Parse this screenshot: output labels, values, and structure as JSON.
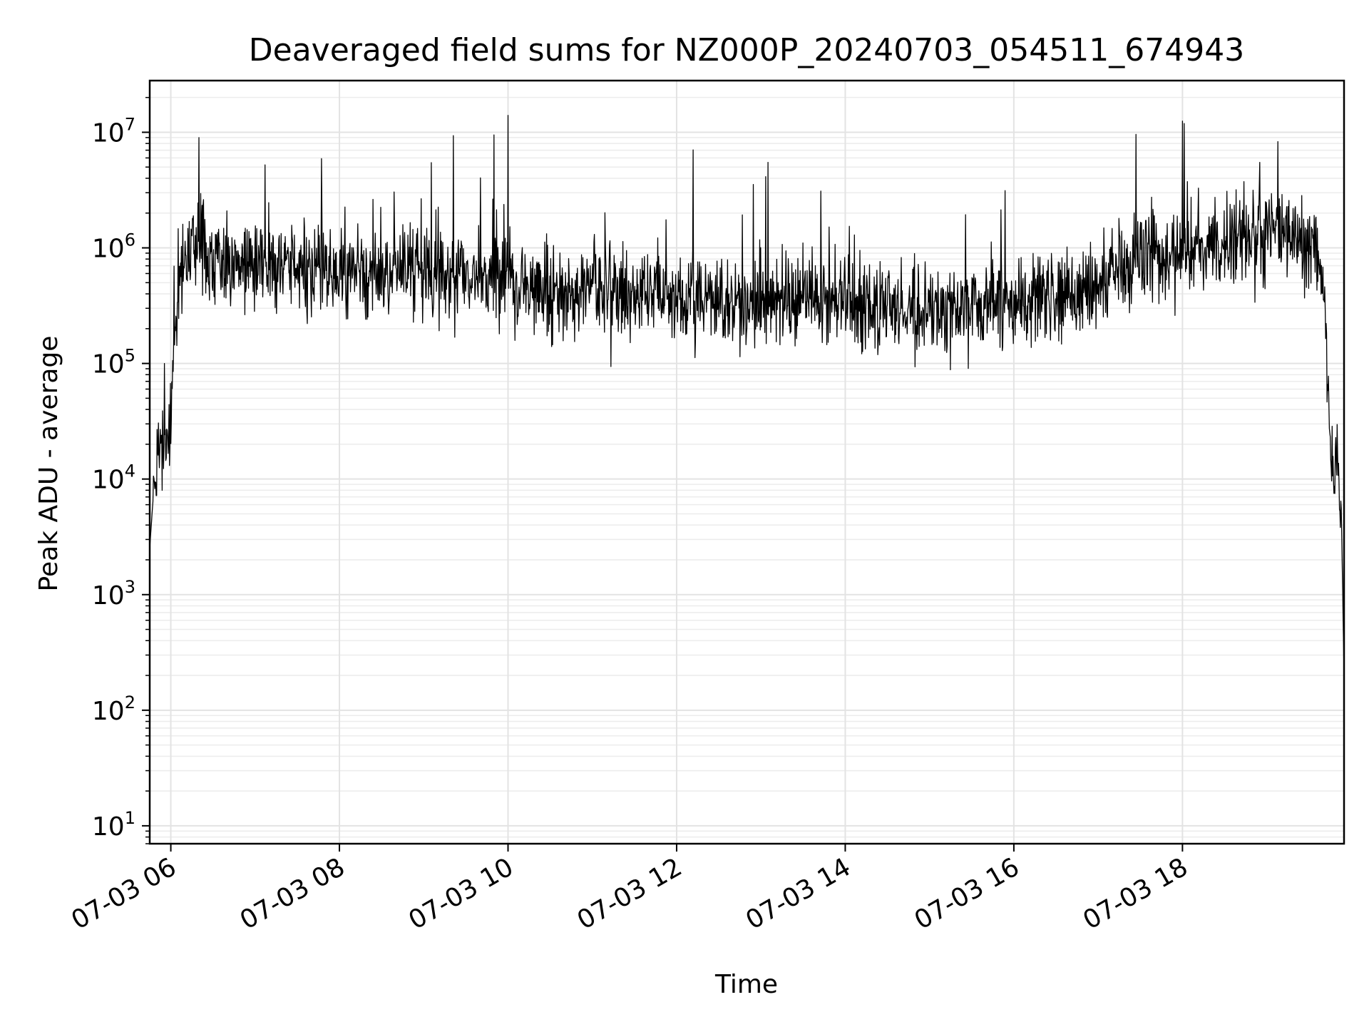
{
  "chart_data": {
    "type": "line",
    "title": "Deaveraged field sums for NZ000P_20240703_054511_674943",
    "xlabel": "Time",
    "ylabel": "Peak ADU - average",
    "yscale": "log",
    "xlim": [
      "2024-07-03 05:45",
      "2024-07-03 19:55"
    ],
    "ylim": [
      7,
      28000000
    ],
    "grid": true,
    "line_color": "#000000",
    "x_ticks": [
      {
        "value": "2024-07-03 06:00",
        "label": "07-03 06"
      },
      {
        "value": "2024-07-03 08:00",
        "label": "07-03 08"
      },
      {
        "value": "2024-07-03 10:00",
        "label": "07-03 10"
      },
      {
        "value": "2024-07-03 12:00",
        "label": "07-03 12"
      },
      {
        "value": "2024-07-03 14:00",
        "label": "07-03 14"
      },
      {
        "value": "2024-07-03 16:00",
        "label": "07-03 16"
      },
      {
        "value": "2024-07-03 18:00",
        "label": "07-03 18"
      }
    ],
    "y_ticks": [
      {
        "value": 10,
        "base": "10",
        "exp": "1"
      },
      {
        "value": 100,
        "base": "10",
        "exp": "2"
      },
      {
        "value": 1000,
        "base": "10",
        "exp": "3"
      },
      {
        "value": 10000,
        "base": "10",
        "exp": "4"
      },
      {
        "value": 100000,
        "base": "10",
        "exp": "5"
      },
      {
        "value": 1000000,
        "base": "10",
        "exp": "6"
      },
      {
        "value": 10000000,
        "base": "10",
        "exp": "7"
      }
    ],
    "series": [
      {
        "x": [
          "2024-07-03 05:45",
          "2024-07-03 05:48",
          "2024-07-03 05:51",
          "2024-07-03 05:54",
          "2024-07-03 05:57",
          "2024-07-03 06:00",
          "2024-07-03 06:02",
          "2024-07-03 06:05",
          "2024-07-03 06:10",
          "2024-07-03 06:20",
          "2024-07-03 06:40",
          "2024-07-03 07:00",
          "2024-07-03 07:30",
          "2024-07-03 08:00",
          "2024-07-03 08:30",
          "2024-07-03 09:00",
          "2024-07-03 09:30",
          "2024-07-03 10:00",
          "2024-07-03 10:30",
          "2024-07-03 11:00",
          "2024-07-03 11:30",
          "2024-07-03 12:00",
          "2024-07-03 12:30",
          "2024-07-03 13:00",
          "2024-07-03 13:30",
          "2024-07-03 14:00",
          "2024-07-03 14:30",
          "2024-07-03 15:00",
          "2024-07-03 15:30",
          "2024-07-03 16:00",
          "2024-07-03 16:30",
          "2024-07-03 17:00",
          "2024-07-03 17:30",
          "2024-07-03 18:00",
          "2024-07-03 18:30",
          "2024-07-03 19:00",
          "2024-07-03 19:20",
          "2024-07-03 19:30",
          "2024-07-03 19:35",
          "2024-07-03 19:40",
          "2024-07-03 19:45",
          "2024-07-03 19:50",
          "2024-07-03 19:53",
          "2024-07-03 19:55"
        ],
        "y": [
          2500,
          9000,
          14000,
          20000,
          25000,
          35000,
          150000,
          500000,
          900000,
          1000000,
          800000,
          750000,
          650000,
          600000,
          650000,
          650000,
          600000,
          550000,
          400000,
          420000,
          450000,
          380000,
          320000,
          350000,
          380000,
          330000,
          300000,
          280000,
          300000,
          320000,
          350000,
          500000,
          800000,
          1000000,
          1100000,
          1300000,
          1400000,
          1100000,
          1000000,
          500000,
          20000,
          12000,
          6000,
          200
        ]
      }
    ],
    "spikes": [
      {
        "x": "2024-07-03 06:20",
        "y": 9000000
      },
      {
        "x": "2024-07-03 09:50",
        "y": 9500000
      },
      {
        "x": "2024-07-03 10:00",
        "y": 14000000
      },
      {
        "x": "2024-07-03 13:05",
        "y": 5500000
      },
      {
        "x": "2024-07-03 18:00",
        "y": 12500000
      },
      {
        "x": "2024-07-03 18:55",
        "y": 5500000
      }
    ]
  }
}
